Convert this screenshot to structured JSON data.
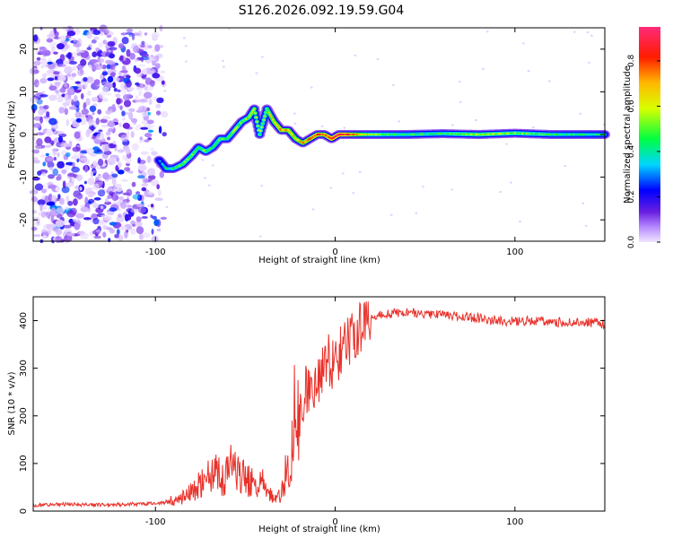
{
  "title": "S126.2026.092.19.59.G04",
  "chart_data": [
    {
      "type": "heatmap",
      "xlabel": "Height of straight line (km)",
      "ylabel": "Frequency (Hz)",
      "xlim": [
        -168,
        150
      ],
      "ylim": [
        -25,
        25
      ],
      "xticks": [
        -100,
        0,
        100
      ],
      "yticks": [
        -20,
        -10,
        0,
        10,
        20
      ],
      "colorbar": {
        "label": "Normalized spectral amplitude",
        "range": [
          0,
          0.95
        ],
        "ticks": [
          "0.0",
          "0.2",
          "0.4",
          "0.6",
          "0.8"
        ],
        "tick_values": [
          0.0,
          0.2,
          0.4,
          0.6,
          0.8
        ]
      },
      "noise_region_x": [
        -168,
        -95
      ],
      "ridge": {
        "x": [
          -98,
          -94,
          -90,
          -85,
          -80,
          -76,
          -72,
          -68,
          -64,
          -60,
          -56,
          -52,
          -48,
          -45,
          -42,
          -38,
          -34,
          -30,
          -26,
          -22,
          -18,
          -14,
          -10,
          -6,
          -2,
          2,
          10,
          20,
          40,
          60,
          80,
          100,
          120,
          150
        ],
        "frequency": [
          -6,
          -8,
          -8,
          -7,
          -5,
          -3,
          -4,
          -3,
          -1,
          -1,
          1,
          3,
          4,
          6,
          0,
          6,
          3,
          1,
          1,
          -1,
          -2,
          -1,
          0,
          0,
          -1,
          0,
          0,
          0,
          0,
          0.2,
          0,
          0.3,
          0,
          0
        ],
        "amplitude": [
          0.3,
          0.4,
          0.45,
          0.5,
          0.5,
          0.45,
          0.5,
          0.45,
          0.5,
          0.45,
          0.55,
          0.5,
          0.55,
          0.6,
          0.5,
          0.55,
          0.65,
          0.75,
          0.7,
          0.65,
          0.7,
          0.75,
          0.8,
          0.75,
          0.85,
          0.9,
          0.75,
          0.5,
          0.45,
          0.45,
          0.55,
          0.5,
          0.45,
          0.4
        ]
      }
    },
    {
      "type": "line",
      "xlabel": "Height of straight line (km)",
      "ylabel": "SNR (10 * v/v)",
      "xlim": [
        -168,
        150
      ],
      "ylim": [
        0,
        450
      ],
      "xticks": [
        -100,
        0,
        100
      ],
      "yticks": [
        0,
        100,
        200,
        300,
        400
      ],
      "series": [
        {
          "name": "SNR",
          "color": "#e8312a",
          "x": [
            -168,
            -150,
            -130,
            -110,
            -100,
            -92,
            -86,
            -82,
            -78,
            -74,
            -70,
            -66,
            -62,
            -58,
            -54,
            -50,
            -46,
            -42,
            -38,
            -34,
            -30,
            -26,
            -24,
            -22,
            -20,
            -18,
            -16,
            -14,
            -12,
            -10,
            -8,
            -6,
            -4,
            -2,
            0,
            2,
            4,
            6,
            8,
            10,
            12,
            14,
            16,
            18,
            20,
            24,
            28,
            32,
            40,
            50,
            60,
            70,
            80,
            90,
            100,
            110,
            120,
            130,
            140,
            150
          ],
          "values": [
            12,
            14,
            13,
            15,
            16,
            20,
            25,
            35,
            45,
            60,
            75,
            80,
            65,
            90,
            85,
            70,
            60,
            55,
            40,
            25,
            35,
            80,
            150,
            200,
            180,
            230,
            250,
            240,
            270,
            260,
            300,
            280,
            320,
            300,
            330,
            320,
            345,
            340,
            360,
            370,
            380,
            385,
            395,
            400,
            405,
            410,
            415,
            415,
            418,
            415,
            412,
            410,
            405,
            400,
            398,
            400,
            398,
            395,
            396,
            393
          ]
        }
      ]
    }
  ]
}
